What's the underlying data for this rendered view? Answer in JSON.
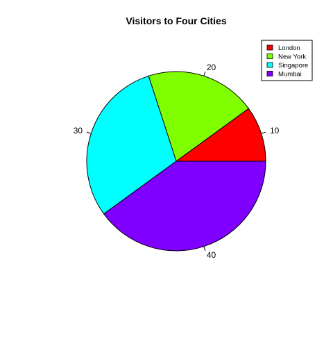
{
  "chart_data": {
    "type": "pie",
    "title": "Visitors to Four Cities",
    "categories": [
      "London",
      "New York",
      "Singapore",
      "Mumbai"
    ],
    "values": [
      10,
      20,
      30,
      40
    ],
    "labels": [
      "10",
      "20",
      "30",
      "40"
    ],
    "colors": [
      "#ff0000",
      "#80ff00",
      "#00ffff",
      "#8000ff"
    ],
    "legend": {
      "position": "top-right",
      "entries": [
        "London",
        "New York",
        "Singapore",
        "Mumbai"
      ]
    },
    "direction": "counterclockwise",
    "start_angle_deg": 0
  }
}
